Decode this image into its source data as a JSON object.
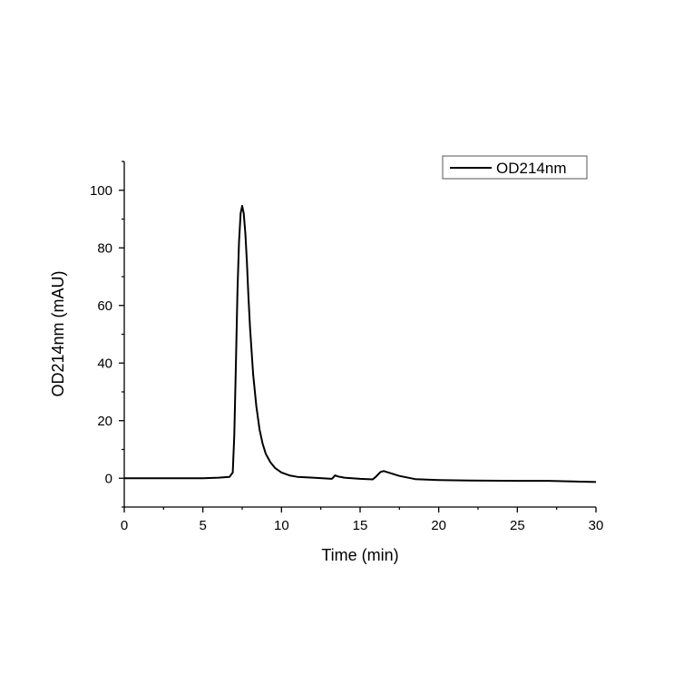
{
  "chart_data": {
    "type": "line",
    "title": "",
    "xlabel": "Time (min)",
    "ylabel": "OD214nm (mAU)",
    "xlim": [
      0,
      30
    ],
    "ylim": [
      -10,
      110
    ],
    "xticks": [
      0,
      5,
      10,
      15,
      20,
      25,
      30
    ],
    "yticks": [
      0,
      20,
      40,
      60,
      80,
      100
    ],
    "xticklabels": [
      "0",
      "5",
      "10",
      "15",
      "20",
      "25",
      "30"
    ],
    "yticklabels": [
      "0",
      "20",
      "40",
      "60",
      "80",
      "100"
    ],
    "grid": false,
    "legend_position": "top-right",
    "series": [
      {
        "name": "OD214nm",
        "color": "#000000",
        "x": [
          0,
          5,
          6,
          6.7,
          6.9,
          7.0,
          7.1,
          7.2,
          7.3,
          7.4,
          7.5,
          7.6,
          7.7,
          7.8,
          7.9,
          8.0,
          8.2,
          8.4,
          8.6,
          8.8,
          9.0,
          9.3,
          9.6,
          10,
          10.5,
          11,
          12,
          13.2,
          13.3,
          13.4,
          13.6,
          14,
          15,
          15.8,
          16.0,
          16.3,
          16.5,
          16.8,
          17.5,
          18.5,
          20,
          22,
          25,
          27,
          30
        ],
        "y": [
          0,
          0,
          0.2,
          0.5,
          2,
          15,
          40,
          65,
          82,
          92,
          94.6,
          92,
          85,
          75,
          63,
          52,
          36,
          25,
          17,
          12,
          8.5,
          5.5,
          3.5,
          2,
          1,
          0.5,
          0.2,
          -0.2,
          0.3,
          1,
          0.6,
          0.2,
          -0.2,
          -0.4,
          0.5,
          2.2,
          2.5,
          2.0,
          0.8,
          -0.3,
          -0.6,
          -0.8,
          -0.9,
          -0.9,
          -1.3
        ]
      }
    ]
  }
}
